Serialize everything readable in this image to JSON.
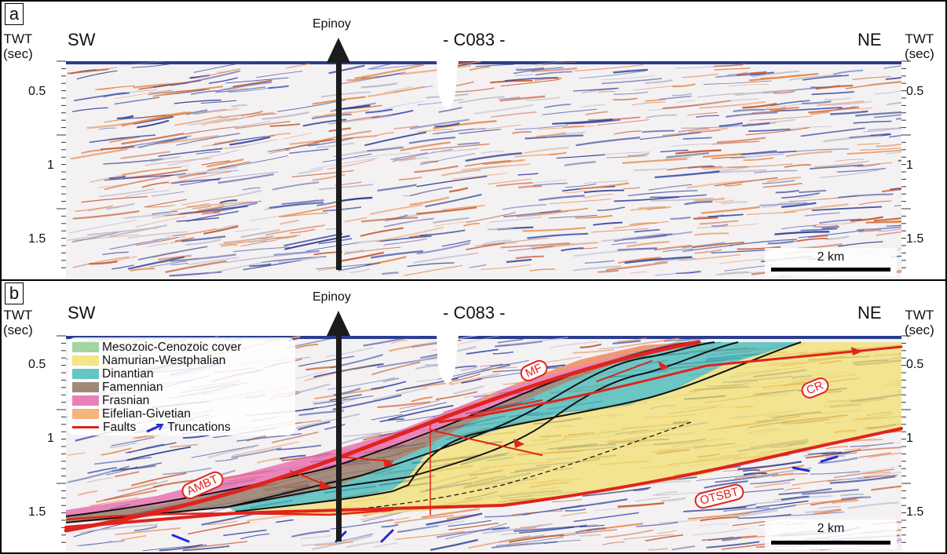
{
  "panel_a": {
    "letter": "a",
    "left_direction": "SW",
    "right_direction": "NE",
    "line_name": "- C083 -",
    "well_name": "Epinoy",
    "axis_title_left": [
      "TWT",
      "(sec)"
    ],
    "axis_title_right": [
      "TWT",
      "(sec)"
    ],
    "ticks": [
      "0.5",
      "1",
      "1.5"
    ],
    "scale_label": "2 km"
  },
  "panel_b": {
    "letter": "b",
    "left_direction": "SW",
    "right_direction": "NE",
    "line_name": "- C083 -",
    "well_name": "Epinoy",
    "axis_title_left": [
      "TWT",
      "(sec)"
    ],
    "axis_title_right": [
      "TWT",
      "(sec)"
    ],
    "ticks": [
      "0.5",
      "1",
      "1.5"
    ],
    "scale_label": "2 km",
    "legend": {
      "units": [
        {
          "label": "Mesozoic-Cenozoic cover",
          "color": "#8cc98a"
        },
        {
          "label": "Namurian-Westphalian",
          "color": "#f1df6a"
        },
        {
          "label": "Dinantian",
          "color": "#3fb7b4"
        },
        {
          "label": "Famennian",
          "color": "#8a6c58"
        },
        {
          "label": "Frasnian",
          "color": "#e462a8"
        },
        {
          "label": "Eifelian-Givetian",
          "color": "#f2a25a"
        }
      ],
      "faults_label": "Faults",
      "truncations_label": "Truncations",
      "fault_color": "#e0231c",
      "truncation_color": "#1f2ad6"
    },
    "structure_labels": {
      "mf": "MF",
      "cr": "CR",
      "ambt": "AMBT",
      "otsbt": "OTSBT"
    }
  }
}
